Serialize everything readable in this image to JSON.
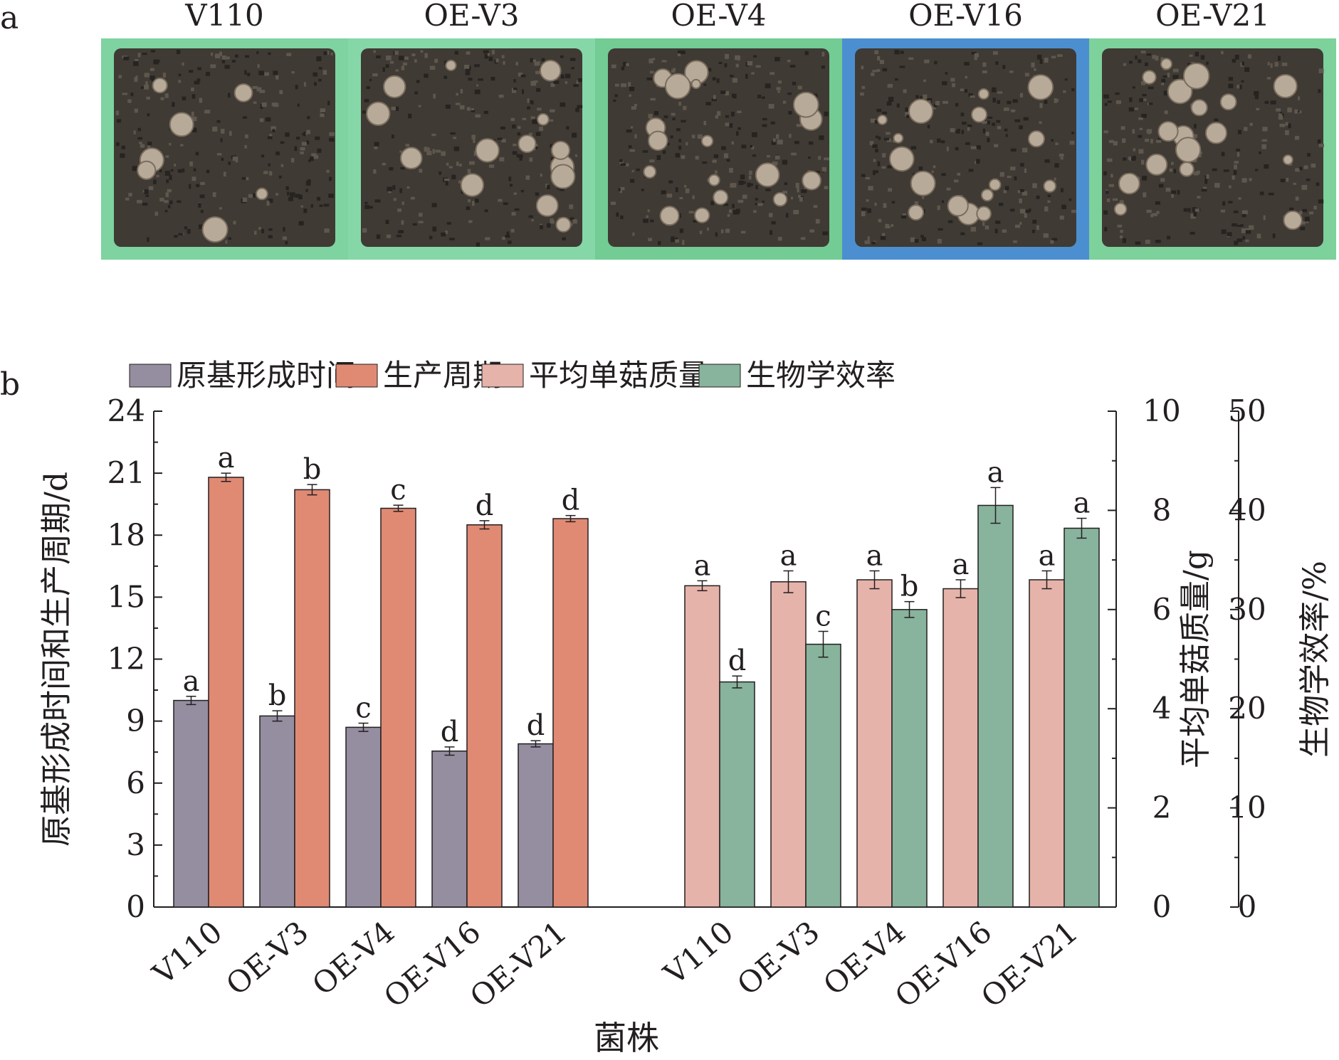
{
  "photo_panel": {
    "panel_label": "a",
    "columns": [
      "V110",
      "OE-V3",
      "OE-V4",
      "OE-V16",
      "OE-V21"
    ],
    "tray_background_colors": [
      "#7ed3a0",
      "#86d7a8",
      "#72cc94",
      "#4c8fd1",
      "#7dd19b"
    ]
  },
  "chart_data": {
    "type": "bar",
    "panel_label": "b",
    "xlabel": "菌株",
    "legend": {
      "position": "top",
      "entries": [
        {
          "name": "原基形成时间",
          "color": "#958ea0"
        },
        {
          "name": "生产周期",
          "color": "#e08a74"
        },
        {
          "name": "平均单菇质量",
          "color": "#e6b3aa"
        },
        {
          "name": "生物学效率",
          "color": "#88b39c"
        }
      ]
    },
    "left_group": {
      "categories": [
        "V110",
        "OE-V3",
        "OE-V4",
        "OE-V16",
        "OE-V21"
      ],
      "ylabel": "原基形成时间和生产周期/d",
      "ylim": [
        0,
        24
      ],
      "yticks": [
        0,
        3,
        6,
        9,
        12,
        15,
        18,
        21,
        24
      ],
      "series": [
        {
          "name": "原基形成时间",
          "color": "#958ea0",
          "values": [
            10.0,
            9.25,
            8.7,
            7.55,
            7.9
          ],
          "errors": [
            0.2,
            0.25,
            0.2,
            0.2,
            0.15
          ],
          "letters": [
            "a",
            "b",
            "c",
            "d",
            "d"
          ]
        },
        {
          "name": "生产周期",
          "color": "#e08a74",
          "values": [
            20.8,
            20.2,
            19.3,
            18.5,
            18.8
          ],
          "errors": [
            0.2,
            0.25,
            0.15,
            0.2,
            0.15
          ],
          "letters": [
            "a",
            "b",
            "c",
            "d",
            "d"
          ]
        }
      ]
    },
    "right_group": {
      "categories": [
        "V110",
        "OE-V3",
        "OE-V4",
        "OE-V16",
        "OE-V21"
      ],
      "series": [
        {
          "name": "平均单菇质量",
          "color": "#e6b3aa",
          "axis": "y2",
          "ylabel": "平均单菇质量/g",
          "ylim": [
            0,
            10
          ],
          "yticks": [
            0,
            2,
            4,
            6,
            8,
            10
          ],
          "values": [
            6.48,
            6.56,
            6.6,
            6.42,
            6.6
          ],
          "errors": [
            0.1,
            0.22,
            0.18,
            0.18,
            0.18
          ],
          "letters": [
            "a",
            "a",
            "a",
            "a",
            "a"
          ]
        },
        {
          "name": "生物学效率",
          "color": "#88b39c",
          "axis": "y3",
          "ylabel": "生物学效率/%",
          "ylim": [
            0,
            50
          ],
          "yticks": [
            0,
            10,
            20,
            30,
            40,
            50
          ],
          "values": [
            22.7,
            26.5,
            30.0,
            40.5,
            38.2
          ],
          "errors": [
            0.6,
            1.3,
            0.8,
            1.8,
            1.0
          ],
          "letters": [
            "d",
            "c",
            "b",
            "a",
            "a"
          ]
        }
      ]
    }
  }
}
